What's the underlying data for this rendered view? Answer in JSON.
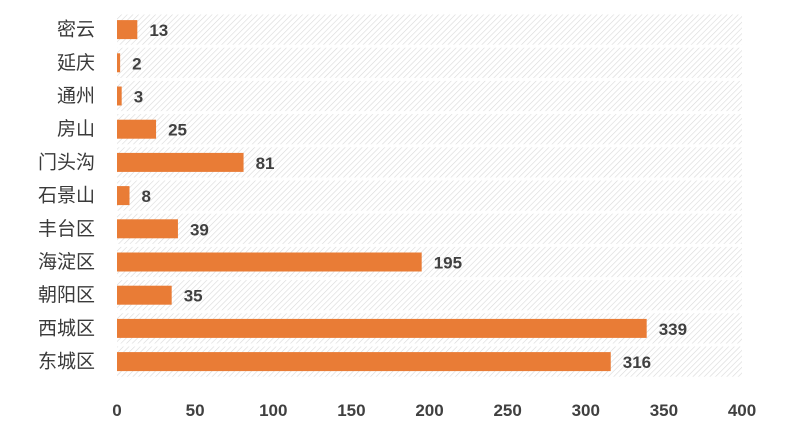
{
  "chart_data": {
    "type": "bar",
    "orientation": "horizontal",
    "categories": [
      "密云",
      "延庆",
      "通州",
      "房山",
      "门头沟",
      "石景山",
      "丰台区",
      "海淀区",
      "朝阳区",
      "西城区",
      "东城区"
    ],
    "values": [
      13,
      2,
      3,
      25,
      81,
      8,
      39,
      195,
      35,
      339,
      316
    ],
    "xlim": [
      0,
      400
    ],
    "xticks": [
      0,
      50,
      100,
      150,
      200,
      250,
      300,
      350,
      400
    ],
    "title": "",
    "xlabel": "",
    "ylabel": "",
    "bar_color": "#E97C36",
    "grid": true,
    "data_labels": true
  }
}
